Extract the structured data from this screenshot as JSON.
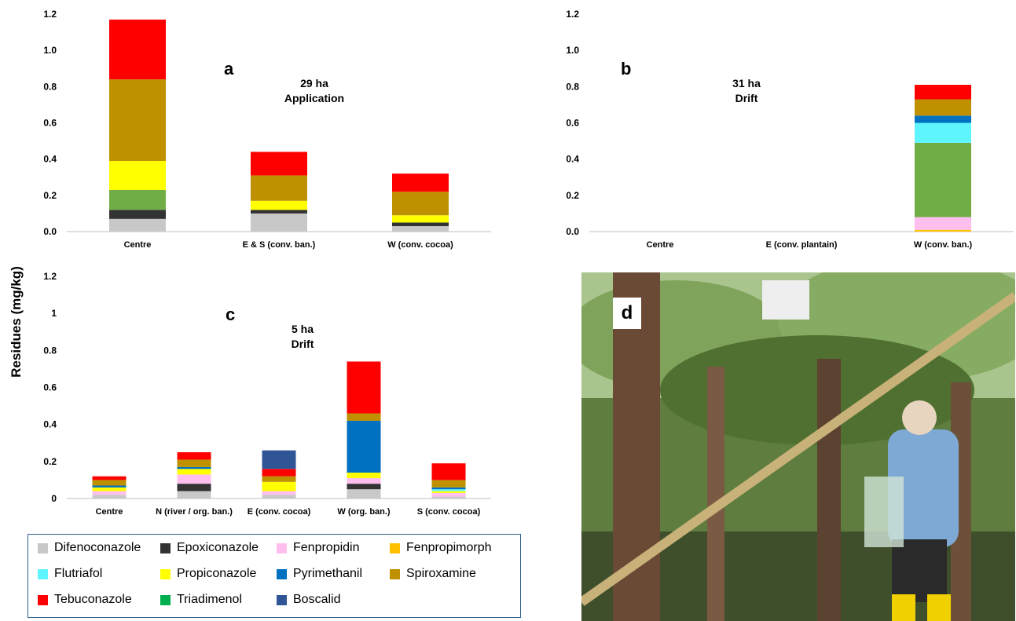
{
  "y_axis_label": "Residues (mg/kg)",
  "colors": {
    "Difenoconazole": "#c8c8c8",
    "Epoxiconazole": "#333333",
    "Fenpropidin": "#ffbfee",
    "Fenpropimorph": "#ffc000",
    "Flutriafol": "#5ff5ff",
    "Propiconazole": "#ffff00",
    "Pyrimethanil": "#0070c0",
    "Spiroxamine": "#bf9000",
    "Tebuconazole": "#ff0000",
    "Triadimenol": "#00b050",
    "Boscalid": "#2f5597",
    "Unnamed green": "#70ad47"
  },
  "chart_data": [
    {
      "type": "bar",
      "stacked": true,
      "panel_label": "a",
      "annotation": [
        "29 ha",
        "Application"
      ],
      "ylim": [
        0,
        1.2
      ],
      "ytick_labels": [
        "0.0",
        "0.2",
        "0.4",
        "0.6",
        "0.8",
        "1.0",
        "1.2"
      ],
      "categories": [
        "Centre",
        "E & S (conv. ban.)",
        "W (conv. cocoa)"
      ],
      "series": [
        {
          "name": "Difenoconazole",
          "values": [
            0.07,
            0.1,
            0.03
          ]
        },
        {
          "name": "Epoxiconazole",
          "values": [
            0.05,
            0.02,
            0.02
          ]
        },
        {
          "name": "Unnamed green",
          "values": [
            0.11,
            0.0,
            0.0
          ]
        },
        {
          "name": "Propiconazole",
          "values": [
            0.16,
            0.05,
            0.04
          ]
        },
        {
          "name": "Spiroxamine",
          "values": [
            0.45,
            0.14,
            0.13
          ]
        },
        {
          "name": "Tebuconazole",
          "values": [
            0.33,
            0.13,
            0.1
          ]
        }
      ]
    },
    {
      "type": "bar",
      "stacked": true,
      "panel_label": "b",
      "annotation": [
        "31 ha",
        "Drift"
      ],
      "ylim": [
        0,
        1.2
      ],
      "ytick_labels": [
        "0.0",
        "0.2",
        "0.4",
        "0.6",
        "0.8",
        "1.0",
        "1.2"
      ],
      "categories": [
        "Centre",
        "E (conv. plantain)",
        "W (conv. ban.)"
      ],
      "series": [
        {
          "name": "Fenpropimorph",
          "values": [
            0,
            0,
            0.01
          ]
        },
        {
          "name": "Fenpropidin",
          "values": [
            0,
            0,
            0.07
          ]
        },
        {
          "name": "Unnamed green",
          "values": [
            0,
            0,
            0.41
          ]
        },
        {
          "name": "Flutriafol",
          "values": [
            0,
            0,
            0.11
          ]
        },
        {
          "name": "Pyrimethanil",
          "values": [
            0,
            0,
            0.04
          ]
        },
        {
          "name": "Spiroxamine",
          "values": [
            0,
            0,
            0.09
          ]
        },
        {
          "name": "Tebuconazole",
          "values": [
            0,
            0,
            0.08
          ]
        }
      ]
    },
    {
      "type": "bar",
      "stacked": true,
      "panel_label": "c",
      "annotation": [
        "5 ha",
        "Drift"
      ],
      "ylim": [
        0,
        1.2
      ],
      "ytick_labels": [
        "0",
        "0.2",
        "0.4",
        "0.6",
        "0.8",
        "1",
        "1.2"
      ],
      "categories": [
        "Centre",
        "N (river / org. ban.)",
        "E (conv. cocoa)",
        "W (org. ban.)",
        "S (conv. cocoa)"
      ],
      "series": [
        {
          "name": "Difenoconazole",
          "values": [
            0.02,
            0.04,
            0.02,
            0.05,
            0.01
          ]
        },
        {
          "name": "Epoxiconazole",
          "values": [
            0.0,
            0.04,
            0.0,
            0.03,
            0.0
          ]
        },
        {
          "name": "Fenpropidin",
          "values": [
            0.02,
            0.05,
            0.02,
            0.03,
            0.02
          ]
        },
        {
          "name": "Propiconazole",
          "values": [
            0.02,
            0.03,
            0.05,
            0.03,
            0.01
          ]
        },
        {
          "name": "Flutriafol",
          "values": [
            0.0,
            0.0,
            0.0,
            0.0,
            0.01
          ]
        },
        {
          "name": "Pyrimethanil",
          "values": [
            0.01,
            0.01,
            0.0,
            0.28,
            0.01
          ]
        },
        {
          "name": "Spiroxamine",
          "values": [
            0.03,
            0.04,
            0.03,
            0.04,
            0.04
          ]
        },
        {
          "name": "Triadimenol",
          "values": [
            0.0,
            0.0,
            0.0,
            0.0,
            0.0
          ]
        },
        {
          "name": "Tebuconazole",
          "values": [
            0.02,
            0.04,
            0.04,
            0.28,
            0.09
          ]
        },
        {
          "name": "Boscalid",
          "values": [
            0.0,
            0.0,
            0.1,
            0.0,
            0.0
          ]
        }
      ]
    }
  ],
  "legend": {
    "items": [
      "Difenoconazole",
      "Epoxiconazole",
      "Fenpropidin",
      "Fenpropimorph",
      "Flutriafol",
      "Propiconazole",
      "Pyrimethanil",
      "Spiroxamine",
      "Tebuconazole",
      "Triadimenol",
      "Boscalid"
    ]
  },
  "photo": {
    "panel_label": "d"
  }
}
